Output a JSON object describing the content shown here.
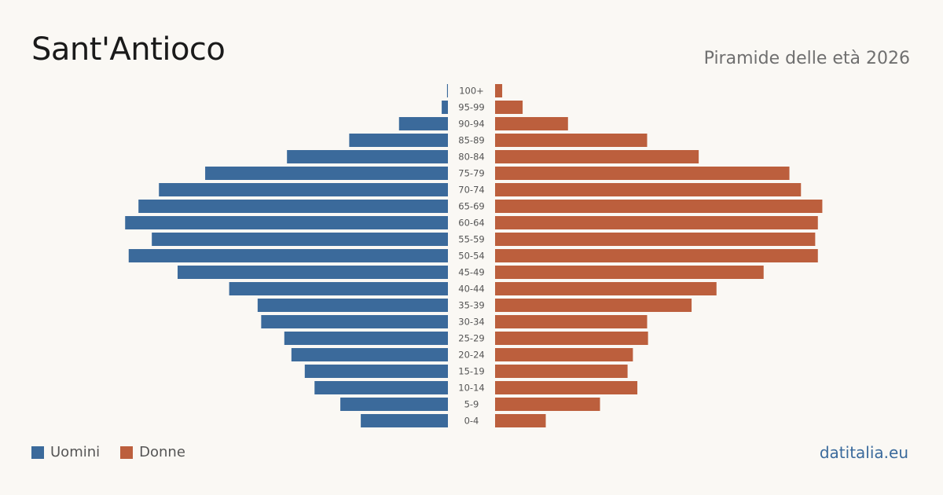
{
  "header": {
    "title": "Sant'Antioco",
    "subtitle": "Piramide delle età 2026"
  },
  "legend": {
    "men": "Uomini",
    "women": "Donne"
  },
  "brand": "datitalia.eu",
  "colors": {
    "men": "#3b6a9b",
    "women": "#bc5f3d",
    "background": "#faf8f4"
  },
  "chart_data": {
    "type": "bar",
    "orientation": "horizontal-pyramid",
    "title": "Sant'Antioco",
    "subtitle": "Piramide delle età 2026",
    "categories": [
      "100+",
      "95-99",
      "90-94",
      "85-89",
      "80-84",
      "75-79",
      "70-74",
      "65-69",
      "60-64",
      "55-59",
      "50-54",
      "45-49",
      "40-44",
      "35-39",
      "30-34",
      "25-29",
      "20-24",
      "15-19",
      "10-14",
      "5-9",
      "0-4"
    ],
    "series": [
      {
        "name": "Uomini",
        "values": [
          1,
          7,
          55,
          111,
          181,
          273,
          325,
          348,
          363,
          333,
          359,
          304,
          246,
          214,
          210,
          184,
          176,
          161,
          150,
          121,
          98
        ]
      },
      {
        "name": "Donne",
        "values": [
          8,
          31,
          82,
          171,
          229,
          331,
          344,
          368,
          363,
          360,
          363,
          302,
          249,
          221,
          171,
          172,
          155,
          149,
          160,
          118,
          57
        ]
      }
    ],
    "xlim": [
      0,
      380
    ],
    "axes": "none",
    "grid": false,
    "legend_position": "bottom-left"
  }
}
